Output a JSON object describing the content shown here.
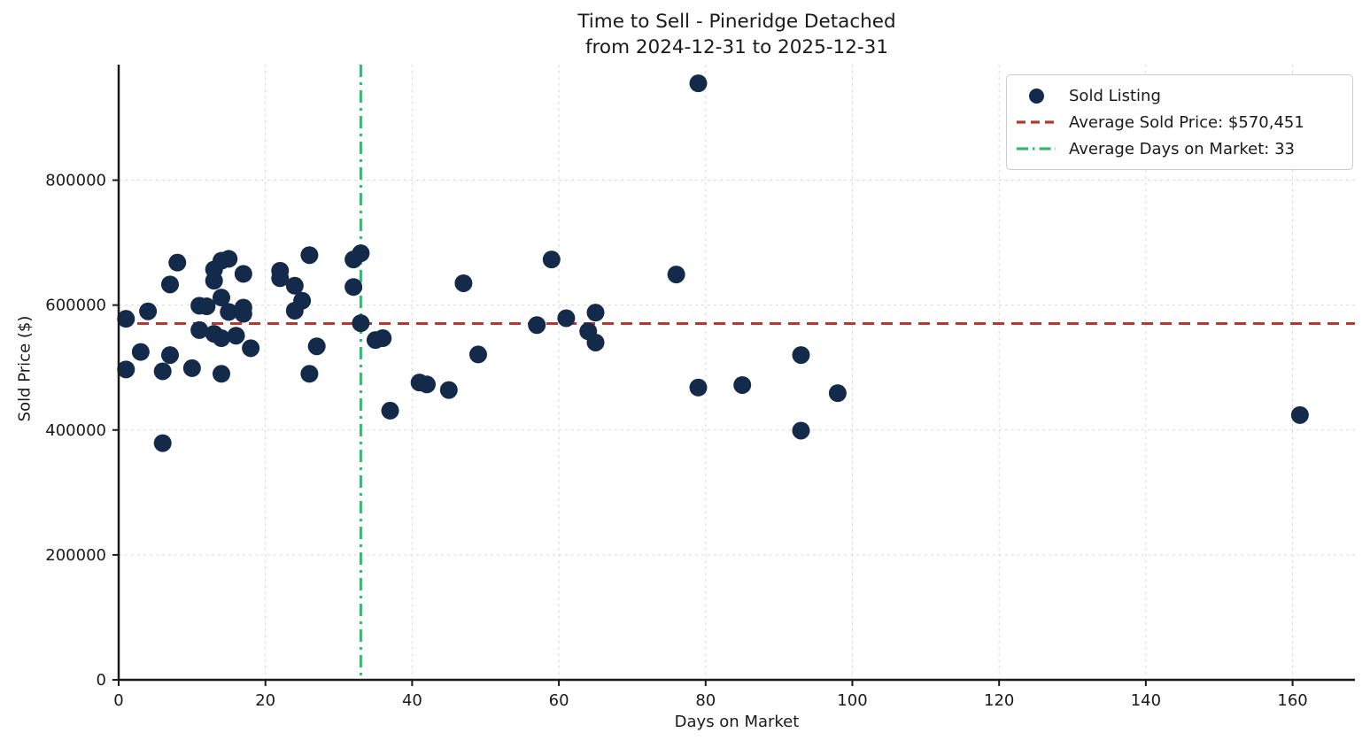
{
  "title": {
    "line1": "Time to Sell - Pineridge Detached",
    "line2": "from 2024-12-31 to 2025-12-31"
  },
  "legend": {
    "items": [
      {
        "label": "Sold Listing",
        "marker": "dot-icon"
      },
      {
        "label": "Average Sold Price: $570,451",
        "marker": "dashed-line-icon"
      },
      {
        "label": "Average Days on Market: 33",
        "marker": "dashdot-line-icon"
      }
    ]
  },
  "colors": {
    "point": "#132a4a",
    "avg_price_line": "#b33a32",
    "avg_days_line": "#3ab572",
    "grid": "#d9d9d9",
    "spine": "#1a1a1a",
    "text": "#1a1a1a"
  },
  "chart_data": {
    "type": "scatter",
    "title": "Time to Sell - Pineridge Detached\nfrom 2024-12-31 to 2025-12-31",
    "xlabel": "Days on Market",
    "ylabel": "Sold Price ($)",
    "xlim": [
      0,
      168.5
    ],
    "ylim": [
      0,
      985000
    ],
    "x_ticks": [
      0,
      20,
      40,
      60,
      80,
      100,
      120,
      140,
      160
    ],
    "y_ticks": [
      0,
      200000,
      400000,
      600000,
      800000
    ],
    "grid": true,
    "legend_position": "upper right",
    "avg_sold_price": {
      "value": 570451,
      "label": "Average Sold Price: $570,451",
      "style": "dashed"
    },
    "avg_days_on_market": {
      "value": 33,
      "label": "Average Days on Market: 33",
      "style": "dashdot"
    },
    "series": [
      {
        "name": "Sold Listing",
        "points": [
          [
            1,
            578000
          ],
          [
            1,
            497000
          ],
          [
            3,
            525000
          ],
          [
            4,
            590000
          ],
          [
            6,
            379000
          ],
          [
            6,
            494000
          ],
          [
            7,
            633000
          ],
          [
            7,
            520000
          ],
          [
            8,
            668000
          ],
          [
            10,
            499000
          ],
          [
            11,
            599000
          ],
          [
            11,
            560000
          ],
          [
            12,
            598000
          ],
          [
            13,
            554000
          ],
          [
            13,
            639000
          ],
          [
            13,
            657000
          ],
          [
            14,
            671000
          ],
          [
            15,
            674000
          ],
          [
            14,
            612000
          ],
          [
            15,
            589000
          ],
          [
            17,
            596000
          ],
          [
            17,
            586000
          ],
          [
            14,
            547000
          ],
          [
            16,
            551000
          ],
          [
            14,
            490000
          ],
          [
            17,
            650000
          ],
          [
            18,
            531000
          ],
          [
            22,
            655000
          ],
          [
            22,
            643000
          ],
          [
            24,
            631000
          ],
          [
            26,
            680000
          ],
          [
            25,
            607000
          ],
          [
            24,
            591000
          ],
          [
            27,
            534000
          ],
          [
            26,
            490000
          ],
          [
            32,
            673000
          ],
          [
            33,
            683000
          ],
          [
            32,
            629000
          ],
          [
            33,
            571000
          ],
          [
            35,
            544000
          ],
          [
            36,
            547000
          ],
          [
            37,
            431000
          ],
          [
            41,
            476000
          ],
          [
            42,
            473000
          ],
          [
            45,
            464000
          ],
          [
            47,
            635000
          ],
          [
            49,
            521000
          ],
          [
            57,
            568000
          ],
          [
            59,
            673000
          ],
          [
            61,
            579000
          ],
          [
            64,
            558000
          ],
          [
            65,
            588000
          ],
          [
            65,
            540000
          ],
          [
            76,
            649000
          ],
          [
            79,
            955000
          ],
          [
            79,
            468000
          ],
          [
            85,
            472000
          ],
          [
            93,
            520000
          ],
          [
            93,
            399000
          ],
          [
            98,
            459000
          ],
          [
            161,
            424000
          ]
        ]
      }
    ]
  }
}
